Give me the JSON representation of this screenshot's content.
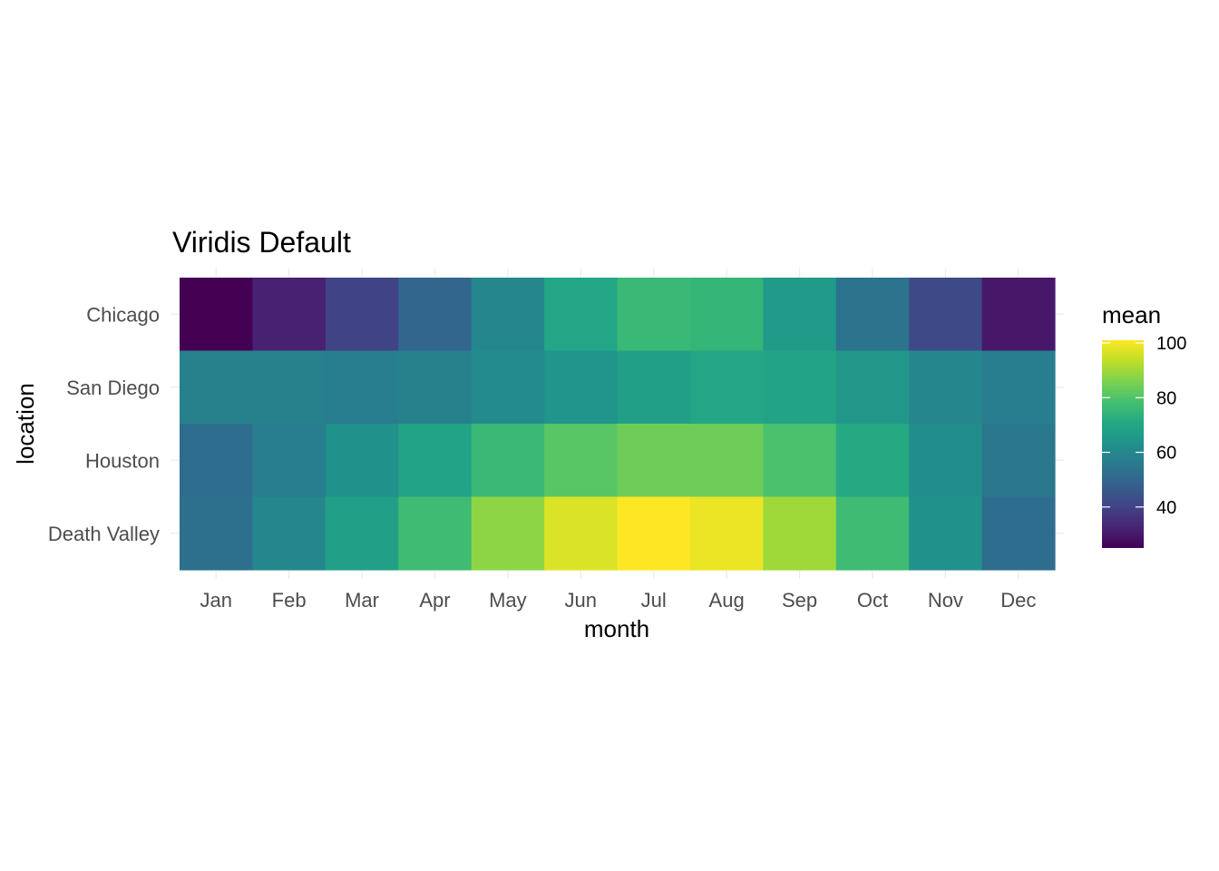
{
  "chart_data": {
    "type": "heatmap",
    "title": "Viridis Default",
    "xlabel": "month",
    "ylabel": "location",
    "x_categories": [
      "Jan",
      "Feb",
      "Mar",
      "Apr",
      "May",
      "Jun",
      "Jul",
      "Aug",
      "Sep",
      "Oct",
      "Nov",
      "Dec"
    ],
    "y_categories": [
      "Chicago",
      "San Diego",
      "Houston",
      "Death Valley"
    ],
    "values": [
      [
        25,
        32,
        40,
        50,
        60,
        70,
        76,
        75,
        66,
        54,
        42,
        30
      ],
      [
        58,
        58,
        57,
        58,
        61,
        64,
        68,
        70,
        69,
        65,
        60,
        57
      ],
      [
        52,
        57,
        63,
        69,
        76,
        81,
        84,
        84,
        79,
        71,
        62,
        55
      ],
      [
        53,
        60,
        68,
        77,
        88,
        97,
        101,
        99,
        90,
        77,
        63,
        52
      ]
    ],
    "legend": {
      "title": "mean",
      "ticks": [
        40,
        60,
        80,
        100
      ],
      "range": [
        25,
        101
      ],
      "placement": "right"
    },
    "colormap": "viridis",
    "grid": true
  }
}
